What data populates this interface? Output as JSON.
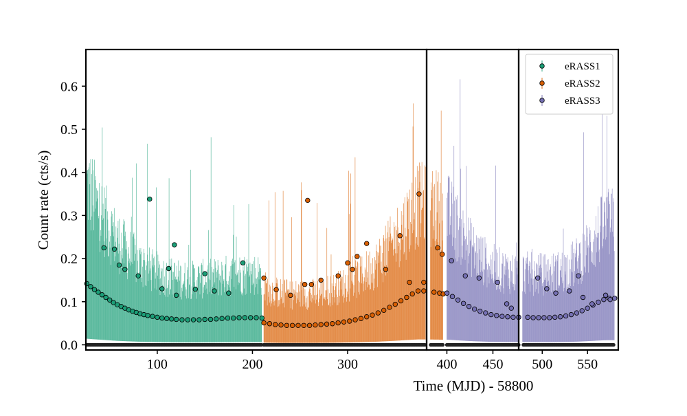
{
  "chart_data": {
    "type": "scatter",
    "title": "",
    "xlabel": "Time (MJD) - 58800",
    "ylabel": "Count rate (cts/s)",
    "ylim": [
      -0.012,
      0.685
    ],
    "grid": false,
    "legend_position": "top-right",
    "panels": [
      {
        "xlim": [
          25,
          383
        ],
        "ticks": [
          100,
          200,
          300
        ],
        "tick_labels": [
          "100",
          "200",
          "300"
        ]
      },
      {
        "xlim": [
          378,
          478
        ],
        "ticks": [
          400,
          450
        ],
        "tick_labels": [
          "400",
          "450"
        ]
      },
      {
        "xlim": [
          474,
          584
        ],
        "ticks": [
          500,
          550
        ],
        "tick_labels": [
          "500",
          "550"
        ]
      }
    ],
    "yticks": [
      0.0,
      0.1,
      0.2,
      0.3,
      0.4,
      0.5,
      0.6
    ],
    "ytick_labels": [
      "0.0",
      "0.1",
      "0.2",
      "0.3",
      "0.4",
      "0.5",
      "0.6"
    ],
    "series": [
      {
        "name": "eRASS1",
        "color": "#1b9e77",
        "x": [
          26,
          30,
          34,
          38,
          42,
          46,
          50,
          54,
          58,
          62,
          66,
          70,
          74,
          78,
          82,
          86,
          90,
          95,
          100,
          105,
          110,
          115,
          120,
          126,
          132,
          138,
          144,
          150,
          156,
          162,
          168,
          174,
          180,
          186,
          192,
          198,
          204,
          210,
          44,
          55,
          60,
          66,
          80,
          92,
          105,
          112,
          118,
          120,
          140,
          150,
          160,
          175,
          190
        ],
        "y": [
          0.142,
          0.135,
          0.128,
          0.122,
          0.116,
          0.11,
          0.104,
          0.098,
          0.093,
          0.089,
          0.085,
          0.081,
          0.078,
          0.075,
          0.072,
          0.07,
          0.068,
          0.066,
          0.064,
          0.062,
          0.061,
          0.06,
          0.059,
          0.058,
          0.058,
          0.058,
          0.058,
          0.059,
          0.059,
          0.06,
          0.061,
          0.062,
          0.062,
          0.063,
          0.063,
          0.063,
          0.063,
          0.062,
          0.225,
          0.222,
          0.185,
          0.175,
          0.16,
          0.338,
          0.13,
          0.177,
          0.232,
          0.115,
          0.129,
          0.165,
          0.125,
          0.12,
          0.19
        ]
      },
      {
        "name": "eRASS2",
        "color": "#d95f02",
        "x": [
          212,
          218,
          224,
          230,
          236,
          242,
          248,
          254,
          260,
          266,
          272,
          278,
          284,
          290,
          296,
          302,
          308,
          314,
          320,
          326,
          332,
          338,
          344,
          350,
          356,
          362,
          368,
          374,
          380,
          386,
          392,
          396,
          212,
          225,
          240,
          255,
          258,
          262,
          272,
          290,
          300,
          305,
          310,
          320,
          340,
          355,
          365,
          375,
          380,
          390,
          395
        ],
        "y": [
          0.051,
          0.049,
          0.047,
          0.046,
          0.045,
          0.045,
          0.045,
          0.045,
          0.045,
          0.046,
          0.047,
          0.048,
          0.049,
          0.051,
          0.053,
          0.055,
          0.058,
          0.061,
          0.065,
          0.069,
          0.074,
          0.08,
          0.087,
          0.094,
          0.102,
          0.11,
          0.118,
          0.125,
          0.125,
          0.122,
          0.12,
          0.118,
          0.155,
          0.128,
          0.115,
          0.14,
          0.335,
          0.14,
          0.15,
          0.16,
          0.19,
          0.175,
          0.205,
          0.235,
          0.175,
          0.253,
          0.145,
          0.35,
          0.145,
          0.225,
          0.21
        ]
      },
      {
        "name": "eRASS3",
        "color": "#7570b3",
        "x": [
          400,
          406,
          412,
          418,
          424,
          430,
          436,
          442,
          448,
          454,
          460,
          466,
          472,
          478,
          484,
          490,
          496,
          502,
          508,
          514,
          520,
          526,
          532,
          538,
          544,
          550,
          556,
          562,
          568,
          574,
          580,
          405,
          420,
          435,
          455,
          465,
          470,
          495,
          505,
          515,
          530,
          540,
          545,
          555,
          570,
          575
        ],
        "y": [
          0.12,
          0.112,
          0.104,
          0.096,
          0.089,
          0.083,
          0.078,
          0.074,
          0.07,
          0.068,
          0.066,
          0.065,
          0.064,
          0.064,
          0.064,
          0.063,
          0.063,
          0.063,
          0.063,
          0.064,
          0.065,
          0.067,
          0.07,
          0.074,
          0.079,
          0.085,
          0.092,
          0.099,
          0.105,
          0.108,
          0.108,
          0.195,
          0.16,
          0.155,
          0.145,
          0.095,
          0.085,
          0.155,
          0.13,
          0.12,
          0.125,
          0.16,
          0.11,
          0.095,
          0.115,
          0.105
        ]
      }
    ]
  }
}
